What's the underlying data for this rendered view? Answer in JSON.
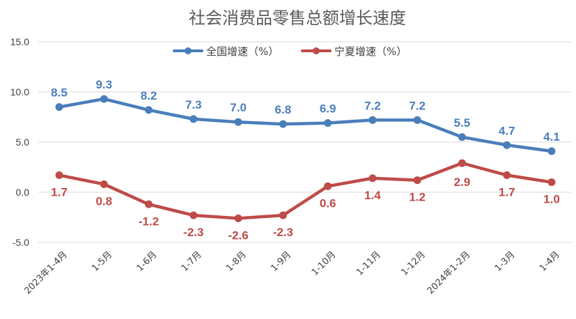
{
  "chart_data": {
    "type": "line",
    "title": "社会消费品零售总额增长速度",
    "categories": [
      "2023年1-4月",
      "1-5月",
      "1-6月",
      "1-7月",
      "1-8月",
      "1-9月",
      "1-10月",
      "1-11月",
      "1-12月",
      "2024年1-2月",
      "1-3月",
      "1-4月"
    ],
    "series": [
      {
        "name": "全国增速（%）",
        "color": "#4a7ebb",
        "values": [
          8.5,
          9.3,
          8.2,
          7.3,
          7.0,
          6.8,
          6.9,
          7.2,
          7.2,
          5.5,
          4.7,
          4.1
        ]
      },
      {
        "name": "宁夏增速（%）",
        "color": "#be4b48",
        "values": [
          1.7,
          0.8,
          -1.2,
          -2.3,
          -2.6,
          -2.3,
          0.6,
          1.4,
          1.2,
          2.9,
          1.7,
          1.0
        ]
      }
    ],
    "ylim": [
      -5.0,
      15.0
    ],
    "yticks": [
      "15.0",
      "10.0",
      "5.0",
      "0.0",
      "-5.0"
    ],
    "ytick_values": [
      15,
      10,
      5,
      0,
      -5
    ],
    "grid": true,
    "legend_position": "top-center",
    "labels": {
      "national": [
        "8.5",
        "9.3",
        "8.2",
        "7.3",
        "7.0",
        "6.8",
        "6.9",
        "7.2",
        "7.2",
        "5.5",
        "4.7",
        "4.1"
      ],
      "ningxia": [
        "1.7",
        "0.8",
        "-1.2",
        "-2.3",
        "-2.6",
        "-2.3",
        "0.6",
        "1.4",
        "1.2",
        "2.9",
        "1.7",
        "1.0"
      ]
    }
  }
}
